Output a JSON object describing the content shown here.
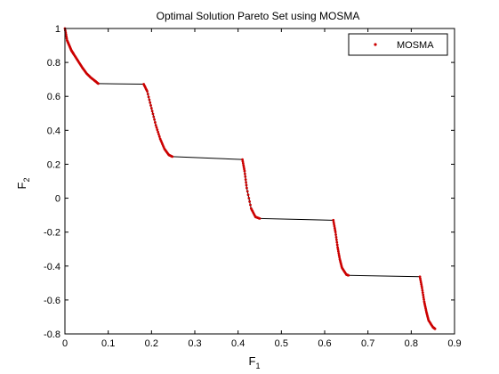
{
  "chart_data": {
    "type": "line",
    "title": "Optimal Solution Pareto Set using MOSMA",
    "xlabel": "F",
    "xlabel_sub": "1",
    "ylabel": "F",
    "ylabel_sub": "2",
    "xlim": [
      0,
      0.9
    ],
    "ylim": [
      -0.8,
      1
    ],
    "xticks": [
      "0",
      "0.1",
      "0.2",
      "0.3",
      "0.4",
      "0.5",
      "0.6",
      "0.7",
      "0.8",
      "0.9"
    ],
    "yticks": [
      "-0.8",
      "-0.6",
      "-0.4",
      "-0.2",
      "0",
      "0.2",
      "0.4",
      "0.6",
      "0.8",
      "1"
    ],
    "grid": false,
    "legend_position": "top-right",
    "series": [
      {
        "name": "MOSMA",
        "marker": "dot",
        "marker_color": "#cc0000",
        "line_color": "#000000",
        "segments": [
          {
            "x": [
              0.0,
              0.005,
              0.01,
              0.015,
              0.02,
              0.03,
              0.04,
              0.05,
              0.06,
              0.07,
              0.077
            ],
            "y": [
              1.0,
              0.93,
              0.9,
              0.87,
              0.85,
              0.81,
              0.77,
              0.735,
              0.71,
              0.69,
              0.675
            ]
          },
          {
            "x": [
              0.077,
              0.182
            ],
            "y": [
              0.675,
              0.672
            ]
          },
          {
            "x": [
              0.182,
              0.19,
              0.2,
              0.21,
              0.22,
              0.23,
              0.24,
              0.248
            ],
            "y": [
              0.672,
              0.63,
              0.53,
              0.43,
              0.35,
              0.29,
              0.255,
              0.245
            ]
          },
          {
            "x": [
              0.248,
              0.41
            ],
            "y": [
              0.245,
              0.228
            ]
          },
          {
            "x": [
              0.41,
              0.415,
              0.42,
              0.43,
              0.44,
              0.45
            ],
            "y": [
              0.228,
              0.16,
              0.06,
              -0.06,
              -0.11,
              -0.12
            ]
          },
          {
            "x": [
              0.45,
              0.62
            ],
            "y": [
              -0.12,
              -0.13
            ]
          },
          {
            "x": [
              0.62,
              0.625,
              0.63,
              0.635,
              0.64,
              0.65,
              0.655
            ],
            "y": [
              -0.13,
              -0.2,
              -0.29,
              -0.36,
              -0.41,
              -0.45,
              -0.455
            ]
          },
          {
            "x": [
              0.655,
              0.82
            ],
            "y": [
              -0.455,
              -0.463
            ]
          },
          {
            "x": [
              0.82,
              0.825,
              0.83,
              0.835,
              0.84,
              0.85,
              0.855
            ],
            "y": [
              -0.463,
              -0.53,
              -0.61,
              -0.67,
              -0.72,
              -0.76,
              -0.77
            ]
          }
        ],
        "point_segments": [
          0,
          2,
          4,
          6,
          8
        ]
      }
    ]
  }
}
